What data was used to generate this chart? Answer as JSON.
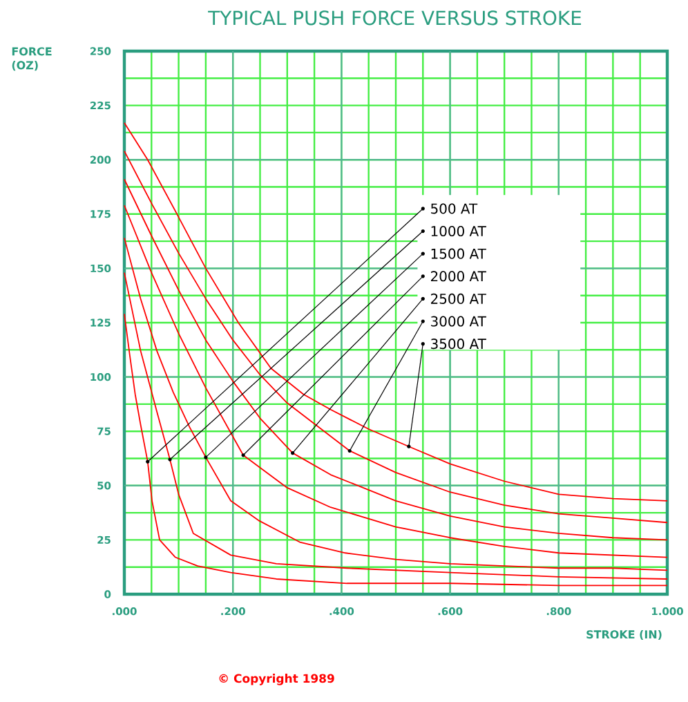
{
  "chart_data": {
    "type": "line",
    "title": "TYPICAL PUSH FORCE VERSUS STROKE",
    "xlabel": "STROKE (IN)",
    "ylabel": "FORCE (OZ)",
    "annotations": [
      "© Copyright 1989"
    ],
    "xlim": [
      0,
      1
    ],
    "ylim": [
      0,
      250
    ],
    "xticks": [
      {
        "value": 0,
        "label": ".000"
      },
      {
        "value": 0.2,
        "label": ".200"
      },
      {
        "value": 0.4,
        "label": ".400"
      },
      {
        "value": 0.6,
        "label": ".600"
      },
      {
        "value": 0.8,
        "label": ".800"
      },
      {
        "value": 1,
        "label": "1.000"
      }
    ],
    "yticks": [
      0,
      25,
      50,
      75,
      100,
      125,
      150,
      175,
      200,
      225,
      250
    ],
    "grid": true,
    "legend": "top right",
    "series": [
      {
        "name": "500 AT",
        "color": "#ff0000",
        "x": [
          0,
          0.01,
          0.02,
          0.03,
          0.043,
          0.051,
          0.065,
          0.094,
          0.135,
          0.196,
          0.28,
          0.41,
          0.6,
          0.8,
          1.0
        ],
        "values": [
          129,
          110,
          92,
          78,
          61,
          43,
          25,
          17,
          13,
          10,
          7,
          5,
          5,
          4,
          4
        ]
      },
      {
        "name": "1000 AT",
        "color": "#ff0000",
        "x": [
          0,
          0.03,
          0.06,
          0.084,
          0.1,
          0.127,
          0.196,
          0.28,
          0.41,
          0.6,
          0.8,
          1.0
        ],
        "values": [
          148,
          112,
          84,
          62,
          46,
          28,
          18,
          14,
          12,
          10,
          8,
          7
        ]
      },
      {
        "name": "1500 AT",
        "color": "#ff0000",
        "x": [
          0,
          0.03,
          0.06,
          0.09,
          0.12,
          0.15,
          0.196,
          0.247,
          0.323,
          0.407,
          0.5,
          0.6,
          0.7,
          0.8,
          0.9,
          1.0
        ],
        "values": [
          164,
          136,
          112,
          93,
          77,
          63,
          43,
          34,
          24,
          19,
          16,
          14,
          13,
          12,
          12,
          11
        ]
      },
      {
        "name": "2000 AT",
        "color": "#ff0000",
        "x": [
          0,
          0.05,
          0.1,
          0.15,
          0.219,
          0.3,
          0.38,
          0.5,
          0.6,
          0.7,
          0.8,
          0.9,
          1.0
        ],
        "values": [
          179,
          148,
          120,
          95,
          64,
          49,
          40,
          31,
          26,
          22,
          19,
          18,
          17
        ]
      },
      {
        "name": "2500 AT",
        "color": "#ff0000",
        "x": [
          0,
          0.05,
          0.1,
          0.15,
          0.2,
          0.25,
          0.31,
          0.38,
          0.5,
          0.6,
          0.7,
          0.8,
          0.9,
          1.0
        ],
        "values": [
          191,
          165,
          140,
          117,
          98,
          81,
          65,
          55,
          43,
          36,
          31,
          28,
          26,
          25
        ]
      },
      {
        "name": "3000 AT",
        "color": "#ff0000",
        "x": [
          0,
          0.05,
          0.1,
          0.15,
          0.2,
          0.25,
          0.3,
          0.415,
          0.5,
          0.6,
          0.7,
          0.8,
          0.9,
          1.0
        ],
        "values": [
          204,
          180,
          157,
          136,
          117,
          101,
          88,
          66,
          56,
          47,
          41,
          37,
          35,
          33
        ]
      },
      {
        "name": "3500 AT",
        "color": "#ff0000",
        "x": [
          0,
          0.043,
          0.097,
          0.15,
          0.21,
          0.27,
          0.33,
          0.38,
          0.45,
          0.524,
          0.6,
          0.7,
          0.8,
          0.9,
          1.0
        ],
        "values": [
          217,
          200,
          175,
          150,
          125,
          104,
          92,
          85,
          76,
          68,
          60,
          52,
          46,
          44,
          43
        ]
      }
    ]
  }
}
